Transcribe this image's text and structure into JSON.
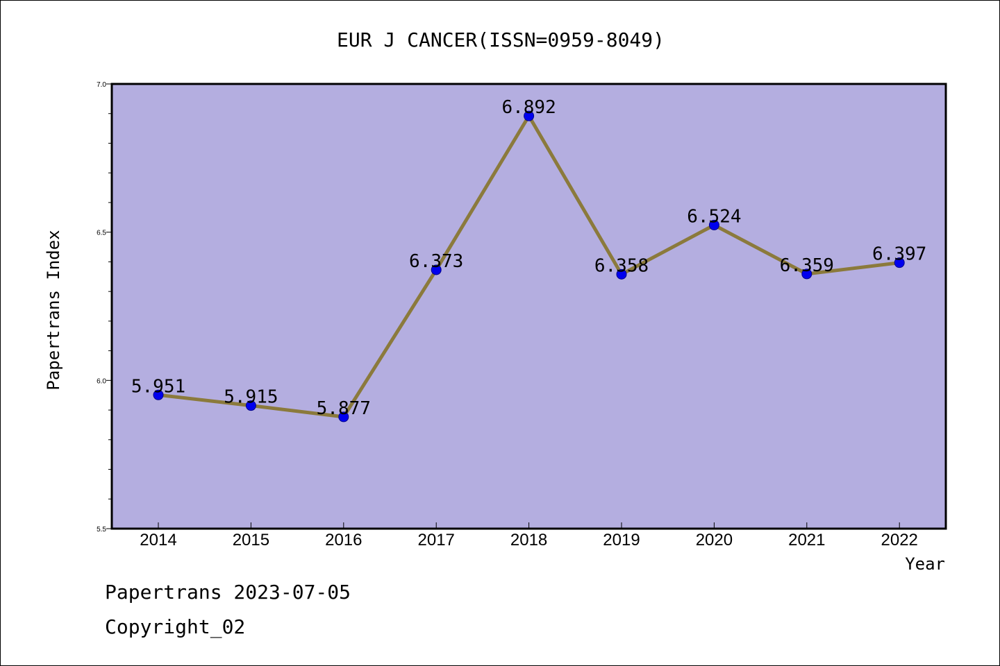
{
  "chart_data": {
    "type": "line",
    "title": "EUR J CANCER(ISSN=0959-8049)",
    "xlabel": "Year",
    "ylabel": "Papertrans Index",
    "categories": [
      "2014",
      "2015",
      "2016",
      "2017",
      "2018",
      "2019",
      "2020",
      "2021",
      "2022"
    ],
    "series": [
      {
        "values": [
          5.951,
          5.915,
          5.877,
          6.373,
          6.892,
          6.358,
          6.524,
          6.359,
          6.397
        ],
        "labels": [
          "5.951",
          "5.915",
          "5.877",
          "6.373",
          "6.892",
          "6.358",
          "6.524",
          "6.359",
          "6.397"
        ]
      }
    ],
    "ylim": [
      5.5,
      7.0
    ],
    "yticks": [
      "5.5",
      "6.0",
      "6.5",
      "7.0"
    ],
    "y_minor_step": 0.1,
    "grid": false,
    "legend": "none",
    "colors": {
      "plot_background": "#b4aee0",
      "line": "#8b7a3c",
      "marker": "#0000ee",
      "marker_edge": "#00008b",
      "frame": "#000000"
    }
  },
  "footer": {
    "date_line": "Papertrans 2023-07-05",
    "copyright_line": "Copyright_02"
  }
}
